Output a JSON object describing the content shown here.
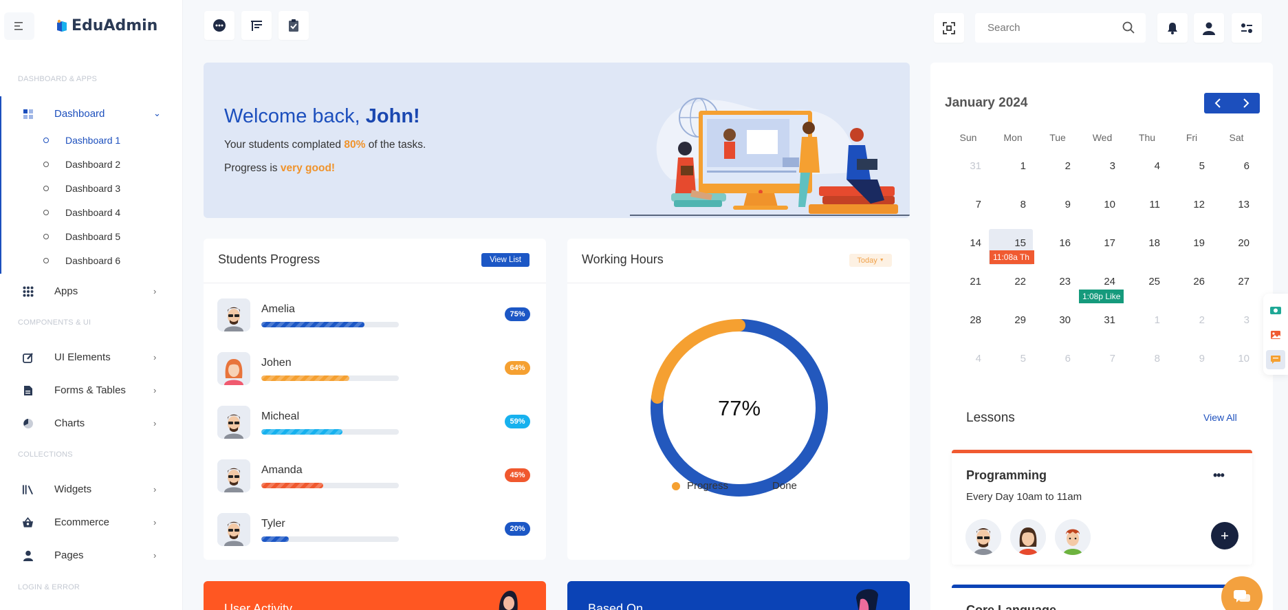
{
  "brand": {
    "name": "EduAdmin"
  },
  "sidebar": {
    "sections": [
      "DASHBOARD & APPS",
      "COMPONENTS & UI",
      "COLLECTIONS",
      "LOGIN & ERROR"
    ],
    "dashboard_label": "Dashboard",
    "sub_items": [
      "Dashboard 1",
      "Dashboard 2",
      "Dashboard 3",
      "Dashboard 4",
      "Dashboard 5",
      "Dashboard 6"
    ],
    "items": [
      {
        "label": "Apps",
        "icon": "apps-grid-icon"
      },
      {
        "label": "UI Elements",
        "icon": "pencil-square-icon"
      },
      {
        "label": "Forms & Tables",
        "icon": "document-icon"
      },
      {
        "label": "Charts",
        "icon": "pie-chart-icon"
      },
      {
        "label": "Widgets",
        "icon": "library-icon"
      },
      {
        "label": "Ecommerce",
        "icon": "basket-icon"
      },
      {
        "label": "Pages",
        "icon": "user-icon"
      }
    ]
  },
  "topbar": {
    "search_placeholder": "Search",
    "left_icons": [
      "chat-bubble-icon",
      "presentation-board-icon",
      "clipboard-check-icon"
    ],
    "right_icons": [
      "fullscreen-icon",
      "bell-icon",
      "user-icon",
      "settings-toggle-icon"
    ]
  },
  "welcome": {
    "greeting": "Welcome back, ",
    "name": "John!",
    "line1_pre": "Your students complated ",
    "line1_value": "80%",
    "line1_post": " of the tasks.",
    "line2_pre": "Progress is ",
    "line2_value": "very good!"
  },
  "students_progress": {
    "title": "Students Progress",
    "button": "View List",
    "students": [
      {
        "name": "Amelia",
        "percent_label": "75%",
        "progress": 0.75,
        "color": "#1c57c5",
        "avatar": "man-with-sunglasses"
      },
      {
        "name": "Johen",
        "percent_label": "64%",
        "progress": 0.64,
        "color": "#f5a031",
        "avatar": "woman-red-hair"
      },
      {
        "name": "Micheal",
        "percent_label": "59%",
        "progress": 0.59,
        "color": "#17b1ee",
        "avatar": "man-with-sunglasses"
      },
      {
        "name": "Amanda",
        "percent_label": "45%",
        "progress": 0.45,
        "color": "#f0582e",
        "avatar": "man-with-sunglasses"
      },
      {
        "name": "Tyler",
        "percent_label": "20%",
        "progress": 0.2,
        "color": "#1c57c5",
        "avatar": "man-with-sunglasses"
      }
    ]
  },
  "working_hours": {
    "title": "Working Hours",
    "filter": "Today",
    "center_label": "77%",
    "legend": [
      {
        "label": "Progress",
        "color": "#f5a031"
      },
      {
        "label": "Done",
        "color": "#2358bd"
      }
    ]
  },
  "chart_data": {
    "type": "pie",
    "subtype": "donut",
    "center_label": "77%",
    "series": [
      {
        "name": "Progress",
        "value": 23,
        "color": "#f5a031"
      },
      {
        "name": "Done",
        "value": 77,
        "color": "#2358bd"
      }
    ]
  },
  "calendar": {
    "title": "January 2024",
    "weekdays": [
      "Sun",
      "Mon",
      "Tue",
      "Wed",
      "Thu",
      "Fri",
      "Sat"
    ],
    "weeks": [
      [
        "31",
        "1",
        "2",
        "3",
        "4",
        "5",
        "6"
      ],
      [
        "7",
        "8",
        "9",
        "10",
        "11",
        "12",
        "13"
      ],
      [
        "14",
        "15",
        "16",
        "17",
        "18",
        "19",
        "20"
      ],
      [
        "21",
        "22",
        "23",
        "24",
        "25",
        "26",
        "27"
      ],
      [
        "28",
        "29",
        "30",
        "31",
        "1",
        "2",
        "3"
      ],
      [
        "4",
        "5",
        "6",
        "7",
        "8",
        "9",
        "10"
      ]
    ],
    "events": [
      {
        "label": "11:08a Th",
        "color": "#f05a31"
      },
      {
        "label": "1:08p Like",
        "color": "#159a7c"
      }
    ]
  },
  "lessons": {
    "title": "Lessons",
    "view_all": "View All",
    "card": {
      "title": "Programming",
      "schedule": "Every Day 10am to 11am"
    },
    "next_card_title": "Core Language"
  },
  "bottom_cards": [
    {
      "title": "User Activity",
      "color": "#ff5722"
    },
    {
      "title": "Based On",
      "color": "#0b43b6"
    }
  ]
}
